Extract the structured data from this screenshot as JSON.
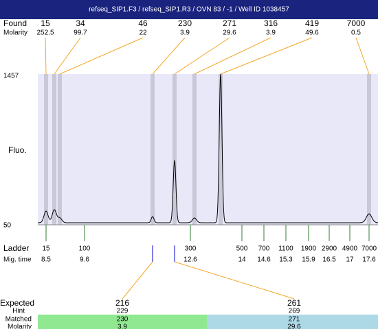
{
  "title": "refseq_SIP1.F3 / refseq_SIP1.R3 / OVN 83 / -1 / Well ID 1038457",
  "found": {
    "label": "Found",
    "molarity_label": "Molarity",
    "peaks": [
      {
        "size": 15,
        "molarity": 252.5
      },
      {
        "size": 34,
        "molarity": 99.7
      },
      {
        "size": 46,
        "molarity": 22
      },
      {
        "size": 230,
        "molarity": 3.9
      },
      {
        "size": 271,
        "molarity": 29.6
      },
      {
        "size": 316,
        "molarity": 3.9
      },
      {
        "size": 419,
        "molarity": 49.6
      },
      {
        "size": 7000,
        "molarity": 0.5
      }
    ]
  },
  "axis": {
    "y_top": 1457,
    "y_bottom": 50,
    "label": "Fluo."
  },
  "ladder": {
    "label": "Ladder",
    "mig_label": "Mig. time",
    "bands": [
      {
        "size": 15,
        "time": 8.5
      },
      {
        "size": 100,
        "time": 9.6
      },
      {
        "size": 300,
        "time": 12.6
      },
      {
        "size": 500,
        "time": 14
      },
      {
        "size": 700,
        "time": 14.6
      },
      {
        "size": 1100,
        "time": 15.3
      },
      {
        "size": 1900,
        "time": 15.9
      },
      {
        "size": 2900,
        "time": 16.5
      },
      {
        "size": 4900,
        "time": 17
      },
      {
        "size": 7000,
        "time": 17.6
      }
    ]
  },
  "expected": {
    "label": "Expected",
    "hint_label": "Hint",
    "matched_label": "Matched",
    "molarity_label": "Molarity",
    "items": [
      {
        "expected": 216,
        "hint": 229,
        "matched": 230,
        "molarity": 3.9
      },
      {
        "expected": 261,
        "hint": 269,
        "matched": 271,
        "molarity": 29.6
      }
    ]
  }
}
